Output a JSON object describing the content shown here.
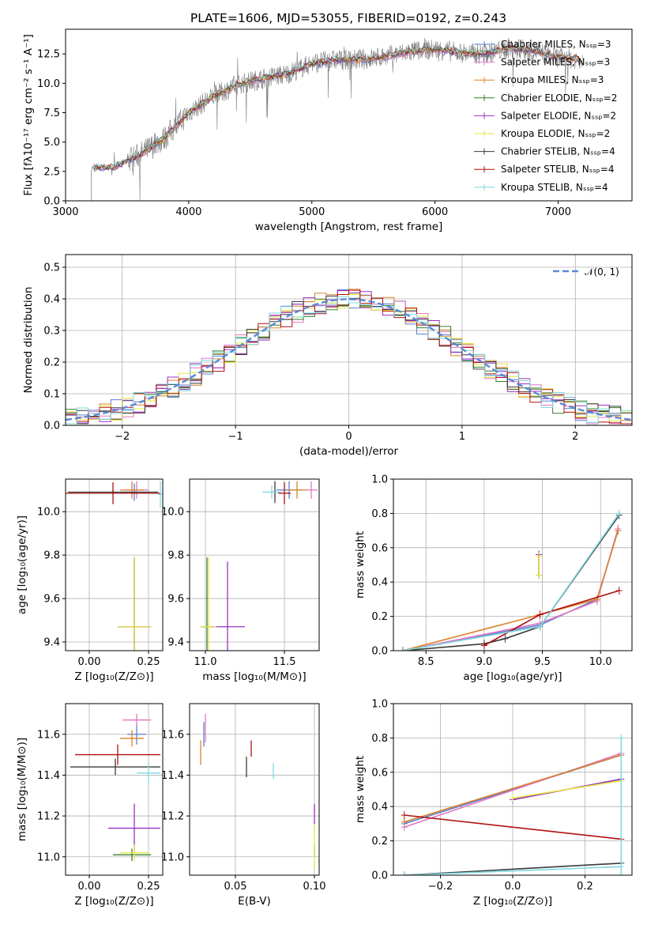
{
  "title": "PLATE=1606, MJD=53055, FIBERID=0192, z=0.243",
  "colors": {
    "Chabrier MILES": "#5b7fd1",
    "Salpeter MILES": "#e377c2",
    "Kroupa MILES": "#d9822b",
    "Chabrier ELODIE": "#3a7d2c",
    "Salpeter ELODIE": "#9b30c0",
    "Kroupa ELODIE": "#e6e642",
    "Chabrier STELIB": "#3a3a3a",
    "Salpeter STELIB": "#b01010",
    "Kroupa STELIB": "#7fd8e0",
    "normal": "#5a8ad6"
  },
  "chart_data": [
    {
      "id": "spectrum",
      "type": "line",
      "xlabel": "wavelength [Angstrom, rest frame]",
      "ylabel": "Flux [fλ10⁻¹⁷ erg cm⁻² s⁻¹ A⁻¹]",
      "xlim": [
        3000,
        7600
      ],
      "ylim": [
        0,
        14.6
      ],
      "xticks": [
        3000,
        4000,
        5000,
        6000,
        7000
      ],
      "yticks": [
        0.0,
        2.5,
        5.0,
        7.5,
        10.0,
        12.5
      ],
      "legend": "upper-right",
      "series": [
        {
          "name": "Chabrier MILES, N_SSP=3"
        },
        {
          "name": "Salpeter MILES, N_SSP=3"
        },
        {
          "name": "Kroupa MILES, N_SSP=3"
        },
        {
          "name": "Chabrier ELODIE, N_SSP=2"
        },
        {
          "name": "Salpeter ELODIE, N_SSP=2"
        },
        {
          "name": "Kroupa ELODIE, N_SSP=2"
        },
        {
          "name": "Chabrier STELIB, N_SSP=4"
        },
        {
          "name": "Salpeter STELIB, N_SSP=4"
        },
        {
          "name": "Kroupa STELIB, N_SSP=4"
        }
      ],
      "observed": {
        "x": [
          3200,
          3400,
          3600,
          3800,
          4000,
          4200,
          4400,
          4600,
          4800,
          5000,
          5200,
          5400,
          5600,
          5800,
          6000,
          6200,
          6400,
          6600,
          6800,
          7000,
          7200
        ],
        "y": [
          2.8,
          2.9,
          3.9,
          5.3,
          7.5,
          8.9,
          9.9,
          10.4,
          10.8,
          11.7,
          12.0,
          12.0,
          12.3,
          12.7,
          12.9,
          12.6,
          12.5,
          13.0,
          12.8,
          12.2,
          12.0
        ]
      }
    },
    {
      "id": "residuals",
      "type": "line",
      "xlabel": "(data-model)/error",
      "ylabel": "Normed distribution",
      "xlim": [
        -2.5,
        2.5
      ],
      "ylim": [
        0,
        0.54
      ],
      "xticks": [
        -2,
        -1,
        0,
        1,
        2
      ],
      "yticks": [
        0.0,
        0.1,
        0.2,
        0.3,
        0.4,
        0.5
      ],
      "grid": true,
      "legend": "upper-right",
      "normal_label": "𝒩(0, 1)",
      "normal": {
        "mean": 0,
        "sigma": 1
      }
    },
    {
      "id": "age-vs-Z",
      "type": "scatter",
      "xlabel": "Z [log₁₀(Z/Z⊙)]",
      "ylabel": "age  [log₁₀(age/yr)]",
      "xlim": [
        -0.1,
        0.31
      ],
      "ylim": [
        9.36,
        10.15
      ],
      "xticks": [
        0.0,
        0.25
      ],
      "xticklabels": [
        "0.00",
        "0.25"
      ],
      "yticks": [
        9.4,
        9.6,
        9.8,
        10.0
      ],
      "grid": true,
      "points": [
        {
          "series": "Chabrier MILES",
          "x": 0.19,
          "y": 10.09,
          "xerr": 0.06,
          "yerr": 0.04
        },
        {
          "series": "Salpeter MILES",
          "x": 0.2,
          "y": 10.1,
          "xerr": 0.05,
          "yerr": 0.04
        },
        {
          "series": "Kroupa MILES",
          "x": 0.18,
          "y": 10.1,
          "xerr": 0.05,
          "yerr": 0.04
        },
        {
          "series": "Chabrier ELODIE",
          "x": 0.19,
          "y": 9.47,
          "xerr": 0.07,
          "yerr": 0.32
        },
        {
          "series": "Salpeter ELODIE",
          "x": 0.19,
          "y": 9.47,
          "xerr": 0.07,
          "yerr": 0.32
        },
        {
          "series": "Kroupa ELODIE",
          "x": 0.19,
          "y": 9.47,
          "xerr": 0.07,
          "yerr": 0.32
        },
        {
          "series": "Chabrier STELIB",
          "x": 0.1,
          "y": 10.09,
          "xerr": 0.19,
          "yerr": 0.01
        },
        {
          "series": "Salpeter STELIB",
          "x": 0.1,
          "y": 10.085,
          "xerr": 0.2,
          "yerr": 0.05
        },
        {
          "series": "Kroupa STELIB",
          "x": 0.3,
          "y": 10.08,
          "xerr": 0.01,
          "yerr": 0.06
        }
      ]
    },
    {
      "id": "age-vs-mass",
      "type": "scatter",
      "xlabel": "mass [log₁₀(M/M⊙)]",
      "ylabel": "",
      "xlim": [
        10.9,
        11.72
      ],
      "ylim": [
        9.36,
        10.15
      ],
      "xticks": [
        11.0,
        11.5
      ],
      "xticklabels": [
        "11.0",
        "11.5"
      ],
      "yticks": [
        9.4,
        9.6,
        9.8,
        10.0
      ],
      "grid": true,
      "points": [
        {
          "series": "Chabrier MILES",
          "x": 11.53,
          "y": 10.1,
          "xerr": 0.08,
          "yerr": 0.04
        },
        {
          "series": "Salpeter MILES",
          "x": 11.67,
          "y": 10.1,
          "xerr": 0.04,
          "yerr": 0.04
        },
        {
          "series": "Kroupa MILES",
          "x": 11.58,
          "y": 10.1,
          "xerr": 0.06,
          "yerr": 0.04
        },
        {
          "series": "Chabrier ELODIE",
          "x": 11.01,
          "y": 9.47,
          "xerr": 0.04,
          "yerr": 0.32
        },
        {
          "series": "Salpeter ELODIE",
          "x": 11.14,
          "y": 9.47,
          "xerr": 0.11,
          "yerr": 0.3
        },
        {
          "series": "Kroupa ELODIE",
          "x": 11.02,
          "y": 9.47,
          "xerr": 0.05,
          "yerr": 0.32
        },
        {
          "series": "Chabrier STELIB",
          "x": 11.44,
          "y": 10.09,
          "xerr": 0.01,
          "yerr": 0.05
        },
        {
          "series": "Salpeter STELIB",
          "x": 11.5,
          "y": 10.085,
          "xerr": 0.04,
          "yerr": 0.05
        },
        {
          "series": "Kroupa STELIB",
          "x": 11.42,
          "y": 10.09,
          "xerr": 0.06,
          "yerr": 0.03
        }
      ]
    },
    {
      "id": "mass-weight-vs-age",
      "type": "line",
      "xlabel": "age  [log₁₀(age/yr)]",
      "ylabel": "mass weight",
      "xlim": [
        8.22,
        10.27
      ],
      "ylim": [
        0,
        1.0
      ],
      "xticks": [
        8.5,
        9.0,
        9.5,
        10.0
      ],
      "xticklabels": [
        "8.5",
        "9.0",
        "9.5",
        "10.0"
      ],
      "yticks": [
        0.0,
        0.2,
        0.4,
        0.6,
        0.8,
        1.0
      ],
      "grid": true,
      "series": [
        {
          "series": "Chabrier MILES",
          "x": [
            8.3,
            9.48,
            9.97,
            10.15
          ],
          "y": [
            0.0,
            0.15,
            0.3,
            0.7
          ]
        },
        {
          "series": "Salpeter MILES",
          "x": [
            8.3,
            9.48,
            9.97,
            10.15
          ],
          "y": [
            0.0,
            0.16,
            0.29,
            0.71
          ]
        },
        {
          "series": "Kroupa MILES",
          "x": [
            8.3,
            9.48,
            9.97,
            10.15
          ],
          "y": [
            0.0,
            0.21,
            0.3,
            0.7
          ]
        },
        {
          "series": "Chabrier ELODIE",
          "x": [
            9.47,
            9.47
          ],
          "y": [
            0.44,
            0.56
          ]
        },
        {
          "series": "Salpeter ELODIE",
          "x": [
            9.47,
            9.47
          ],
          "y": [
            0.44,
            0.56
          ]
        },
        {
          "series": "Kroupa ELODIE",
          "x": [
            9.47,
            9.47
          ],
          "y": [
            0.44,
            0.55
          ]
        },
        {
          "series": "Chabrier STELIB",
          "x": [
            8.3,
            9.0,
            9.18,
            9.48,
            10.16
          ],
          "y": [
            0.0,
            0.04,
            0.07,
            0.14,
            0.79
          ]
        },
        {
          "series": "Salpeter STELIB",
          "x": [
            9.0,
            9.48,
            10.16
          ],
          "y": [
            0.03,
            0.21,
            0.35
          ]
        },
        {
          "series": "Kroupa STELIB",
          "x": [
            8.3,
            9.48,
            10.16
          ],
          "y": [
            0.0,
            0.14,
            0.8
          ]
        }
      ]
    },
    {
      "id": "mass-vs-Z",
      "type": "scatter",
      "xlabel": "Z [log₁₀(Z/Z⊙)]",
      "ylabel": "mass [log₁₀(M/M⊙)]",
      "xlim": [
        -0.1,
        0.31
      ],
      "ylim": [
        10.91,
        11.75
      ],
      "xticks": [
        0.0,
        0.25
      ],
      "xticklabels": [
        "0.00",
        "0.25"
      ],
      "yticks": [
        11.0,
        11.2,
        11.4,
        11.6
      ],
      "grid": true,
      "points": [
        {
          "series": "Chabrier MILES",
          "x": 0.2,
          "y": 11.6,
          "xerr": 0.04,
          "yerr": 0.05
        },
        {
          "series": "Salpeter MILES",
          "x": 0.2,
          "y": 11.67,
          "xerr": 0.06,
          "yerr": 0.03
        },
        {
          "series": "Kroupa MILES",
          "x": 0.18,
          "y": 11.58,
          "xerr": 0.05,
          "yerr": 0.04
        },
        {
          "series": "Chabrier ELODIE",
          "x": 0.18,
          "y": 11.01,
          "xerr": 0.08,
          "yerr": 0.03
        },
        {
          "series": "Salpeter ELODIE",
          "x": 0.19,
          "y": 11.14,
          "xerr": 0.11,
          "yerr": 0.12
        },
        {
          "series": "Kroupa ELODIE",
          "x": 0.19,
          "y": 11.02,
          "xerr": 0.06,
          "yerr": 0.04
        },
        {
          "series": "Chabrier STELIB",
          "x": 0.11,
          "y": 11.44,
          "xerr": 0.19,
          "yerr": 0.04
        },
        {
          "series": "Salpeter STELIB",
          "x": 0.12,
          "y": 11.5,
          "xerr": 0.18,
          "yerr": 0.05
        },
        {
          "series": "Kroupa STELIB",
          "x": 0.25,
          "y": 11.41,
          "xerr": 0.05,
          "yerr": 0.05
        }
      ]
    },
    {
      "id": "mass-vs-EBV",
      "type": "scatter",
      "xlabel": "E(B-V)",
      "ylabel": "",
      "xlim": [
        0.021,
        0.103
      ],
      "ylim": [
        10.91,
        11.75
      ],
      "xticks": [
        0.05,
        0.1
      ],
      "xticklabels": [
        "0.05",
        "0.10"
      ],
      "yticks": [
        11.0,
        11.2,
        11.4,
        11.6
      ],
      "grid": true,
      "points": [
        {
          "series": "Chabrier MILES",
          "x": 0.03,
          "y": 11.6,
          "xerr": 0.0,
          "yerr": 0.06
        },
        {
          "series": "Salpeter MILES",
          "x": 0.031,
          "y": 11.63,
          "xerr": 0.0,
          "yerr": 0.07
        },
        {
          "series": "Kroupa MILES",
          "x": 0.028,
          "y": 11.51,
          "xerr": 0.0,
          "yerr": 0.06
        },
        {
          "series": "Chabrier ELODIE",
          "x": 0.1,
          "y": 11.03,
          "xerr": 0.0,
          "yerr": 0.03
        },
        {
          "series": "Salpeter ELODIE",
          "x": 0.1,
          "y": 11.21,
          "xerr": 0.0,
          "yerr": 0.05
        },
        {
          "series": "Kroupa ELODIE",
          "x": 0.1,
          "y": 11.05,
          "xerr": 0.0,
          "yerr": 0.11
        },
        {
          "series": "Chabrier STELIB",
          "x": 0.057,
          "y": 11.44,
          "xerr": 0.0,
          "yerr": 0.05
        },
        {
          "series": "Salpeter STELIB",
          "x": 0.06,
          "y": 11.53,
          "xerr": 0.0,
          "yerr": 0.04
        },
        {
          "series": "Kroupa STELIB",
          "x": 0.074,
          "y": 11.42,
          "xerr": 0.0,
          "yerr": 0.04
        }
      ]
    },
    {
      "id": "mass-weight-vs-Z",
      "type": "line",
      "xlabel": "Z [log₁₀(Z/Z⊙)]",
      "ylabel": "mass weight",
      "xlim": [
        -0.33,
        0.33
      ],
      "ylim": [
        0,
        1.0
      ],
      "xticks": [
        -0.2,
        0.0,
        0.2
      ],
      "xticklabels": [
        "−0.2",
        "0.0",
        "0.2"
      ],
      "yticks": [
        0.0,
        0.2,
        0.4,
        0.6,
        0.8,
        1.0
      ],
      "grid": true,
      "series": [
        {
          "series": "Chabrier MILES",
          "x": [
            -0.3,
            0.3
          ],
          "y": [
            0.3,
            0.7
          ]
        },
        {
          "series": "Salpeter MILES",
          "x": [
            -0.3,
            0.3
          ],
          "y": [
            0.28,
            0.71
          ]
        },
        {
          "series": "Kroupa MILES",
          "x": [
            -0.3,
            0.3
          ],
          "y": [
            0.31,
            0.7
          ]
        },
        {
          "series": "Chabrier ELODIE",
          "x": [
            0.0,
            0.3
          ],
          "y": [
            0.44,
            0.56
          ]
        },
        {
          "series": "Salpeter ELODIE",
          "x": [
            0.0,
            0.3
          ],
          "y": [
            0.44,
            0.56
          ]
        },
        {
          "series": "Kroupa ELODIE",
          "x": [
            0.0,
            0.3
          ],
          "y": [
            0.45,
            0.55
          ]
        },
        {
          "series": "Chabrier STELIB",
          "x": [
            -0.3,
            0.3
          ],
          "y": [
            0.0,
            0.07
          ]
        },
        {
          "series": "Salpeter STELIB",
          "x": [
            -0.3,
            0.3
          ],
          "y": [
            0.35,
            0.21
          ]
        },
        {
          "series": "Kroupa STELIB",
          "x": [
            -0.3,
            0.3
          ],
          "y": [
            0.0,
            0.05
          ]
        },
        {
          "series": "Kroupa STELIB",
          "x": [
            0.3,
            0.3
          ],
          "y": [
            0.0,
            0.8
          ]
        }
      ]
    }
  ]
}
